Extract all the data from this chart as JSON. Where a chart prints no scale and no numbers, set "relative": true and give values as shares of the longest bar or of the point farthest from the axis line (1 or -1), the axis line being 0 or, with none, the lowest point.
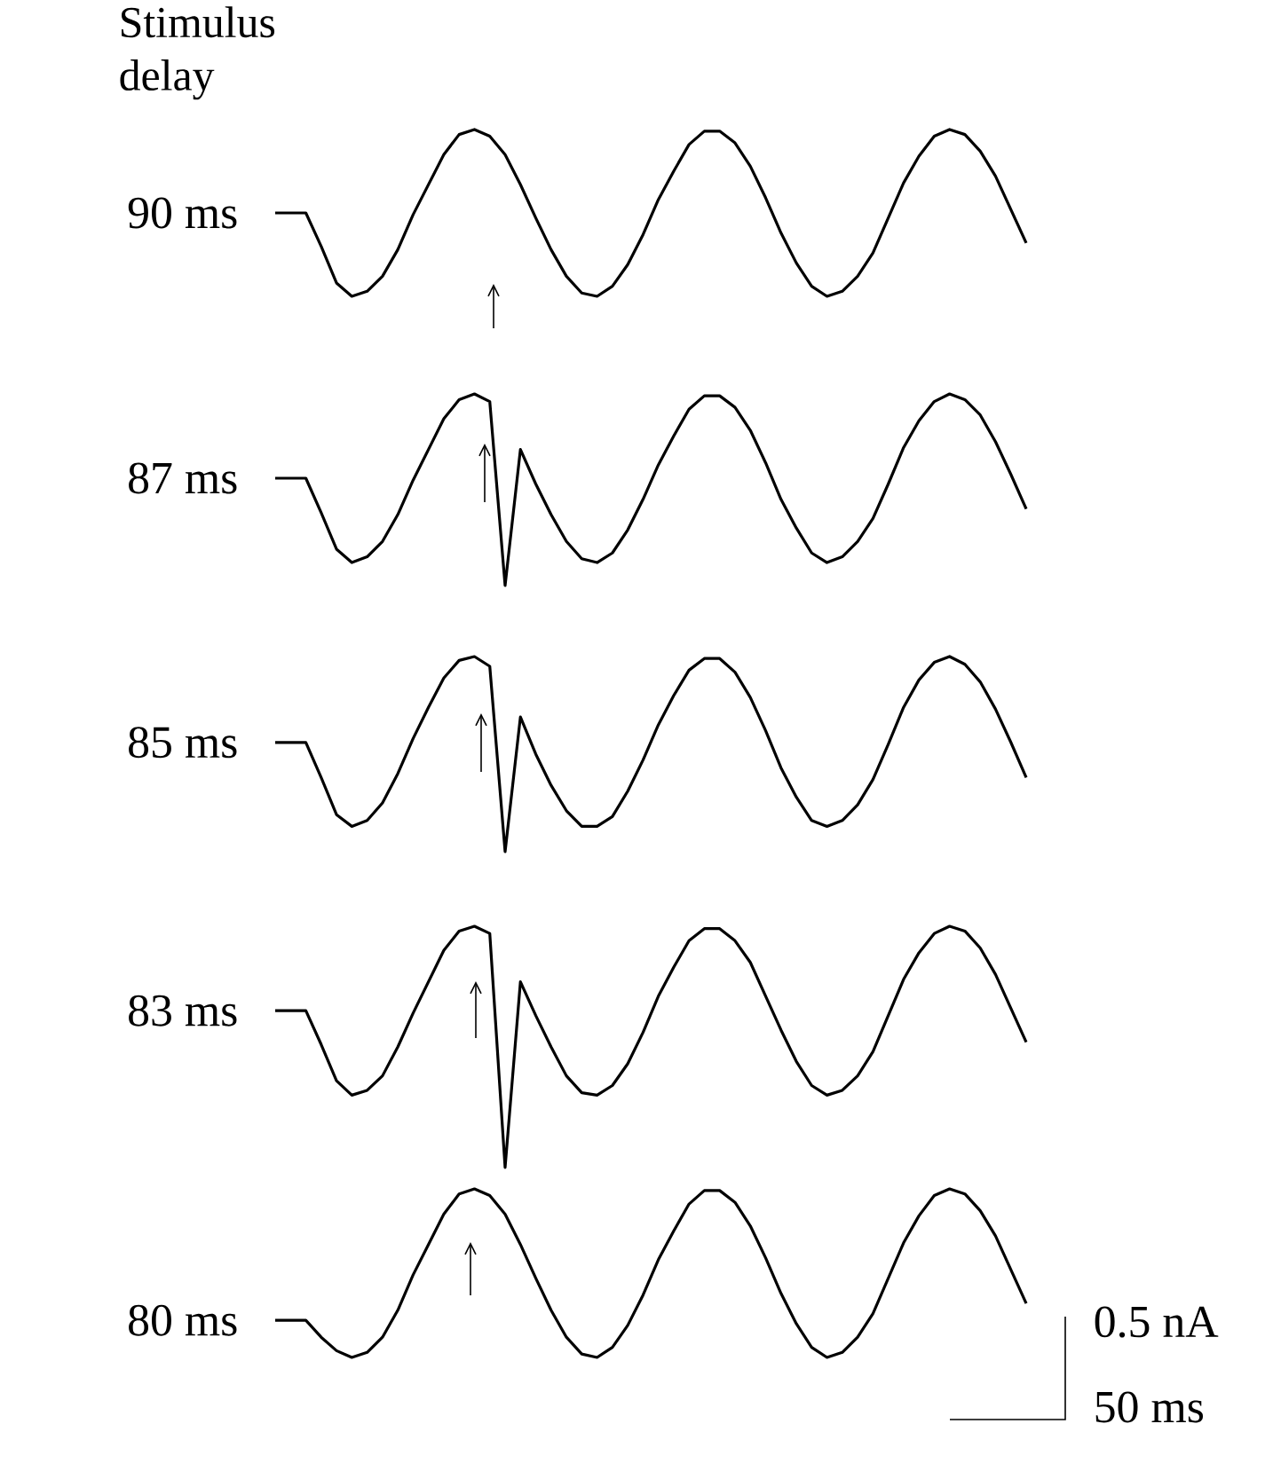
{
  "chart_data": [
    {
      "type": "line",
      "relative": true,
      "title": "Stimulus delay",
      "ylabel": "90 ms",
      "color": "#000000",
      "categories": [
        null,
        null,
        null,
        null,
        null,
        null,
        null,
        null,
        null,
        null,
        null,
        null,
        null,
        null,
        null,
        null,
        null,
        null,
        null,
        null,
        null,
        null,
        null,
        null,
        null,
        null,
        null,
        null,
        null,
        null,
        null,
        null,
        null,
        null,
        null,
        null,
        null,
        null,
        null,
        null,
        null,
        null,
        null,
        null,
        null,
        null,
        null,
        null,
        null,
        null
      ],
      "values": [
        0.5,
        0.5,
        0.5,
        0.3,
        0.08,
        0.0,
        0.03,
        0.12,
        0.28,
        0.49,
        0.67,
        0.85,
        0.97,
        1.0,
        0.96,
        0.85,
        0.67,
        0.47,
        0.28,
        0.12,
        0.02,
        0.0,
        0.06,
        0.19,
        0.37,
        0.58,
        0.75,
        0.91,
        0.99,
        0.99,
        0.92,
        0.78,
        0.59,
        0.38,
        0.2,
        0.06,
        0.0,
        0.03,
        0.12,
        0.26,
        0.47,
        0.68,
        0.84,
        0.96,
        1.0,
        0.97,
        0.87,
        0.72,
        0.52,
        0.32
      ]
    },
    {
      "type": "line",
      "relative": true,
      "ylabel": "87 ms",
      "color": "#000000",
      "categories": [
        null,
        null,
        null,
        null,
        null,
        null,
        null,
        null,
        null,
        null,
        null,
        null,
        null,
        null,
        null,
        null,
        null,
        null,
        null,
        null,
        null,
        null,
        null,
        null,
        null,
        null,
        null,
        null,
        null,
        null,
        null,
        null,
        null,
        null,
        null,
        null,
        null,
        null,
        null,
        null,
        null,
        null,
        null,
        null,
        null,
        null,
        null,
        null,
        null,
        null
      ],
      "values": [
        0.56,
        0.56,
        0.56,
        0.38,
        0.19,
        0.12,
        0.15,
        0.23,
        0.37,
        0.55,
        0.71,
        0.87,
        0.97,
        1.0,
        0.96,
        0.0,
        0.71,
        0.53,
        0.37,
        0.23,
        0.14,
        0.12,
        0.17,
        0.29,
        0.45,
        0.63,
        0.78,
        0.92,
        0.99,
        0.99,
        0.93,
        0.81,
        0.64,
        0.45,
        0.3,
        0.17,
        0.12,
        0.15,
        0.23,
        0.35,
        0.53,
        0.72,
        0.86,
        0.96,
        1.0,
        0.97,
        0.89,
        0.75,
        0.58,
        0.4
      ]
    },
    {
      "type": "line",
      "relative": true,
      "ylabel": "85 ms",
      "color": "#000000",
      "categories": [
        null,
        null,
        null,
        null,
        null,
        null,
        null,
        null,
        null,
        null,
        null,
        null,
        null,
        null,
        null,
        null,
        null,
        null,
        null,
        null,
        null,
        null,
        null,
        null,
        null,
        null,
        null,
        null,
        null,
        null,
        null,
        null,
        null,
        null,
        null,
        null,
        null,
        null,
        null,
        null,
        null,
        null,
        null,
        null,
        null,
        null,
        null,
        null,
        null,
        null
      ],
      "values": [
        0.56,
        0.56,
        0.56,
        0.38,
        0.19,
        0.13,
        0.16,
        0.25,
        0.4,
        0.58,
        0.74,
        0.89,
        0.98,
        1.0,
        0.95,
        0.0,
        0.69,
        0.5,
        0.34,
        0.21,
        0.13,
        0.13,
        0.18,
        0.31,
        0.47,
        0.65,
        0.8,
        0.93,
        0.99,
        0.99,
        0.92,
        0.79,
        0.62,
        0.43,
        0.28,
        0.16,
        0.13,
        0.16,
        0.24,
        0.37,
        0.55,
        0.74,
        0.88,
        0.97,
        1.0,
        0.96,
        0.87,
        0.73,
        0.56,
        0.38
      ]
    },
    {
      "type": "line",
      "relative": true,
      "ylabel": "83 ms",
      "color": "#000000",
      "categories": [
        null,
        null,
        null,
        null,
        null,
        null,
        null,
        null,
        null,
        null,
        null,
        null,
        null,
        null,
        null,
        null,
        null,
        null,
        null,
        null,
        null,
        null,
        null,
        null,
        null,
        null,
        null,
        null,
        null,
        null,
        null,
        null,
        null,
        null,
        null,
        null,
        null,
        null,
        null,
        null,
        null,
        null,
        null,
        null,
        null,
        null,
        null,
        null,
        null,
        null
      ],
      "values": [
        0.65,
        0.65,
        0.65,
        0.51,
        0.36,
        0.3,
        0.32,
        0.38,
        0.5,
        0.64,
        0.77,
        0.9,
        0.98,
        1.0,
        0.97,
        0.0,
        0.77,
        0.63,
        0.5,
        0.38,
        0.31,
        0.3,
        0.34,
        0.43,
        0.56,
        0.71,
        0.83,
        0.94,
        0.99,
        0.99,
        0.94,
        0.85,
        0.71,
        0.57,
        0.44,
        0.34,
        0.3,
        0.32,
        0.38,
        0.48,
        0.63,
        0.78,
        0.89,
        0.97,
        1.0,
        0.98,
        0.91,
        0.8,
        0.66,
        0.52
      ]
    },
    {
      "type": "line",
      "relative": true,
      "ylabel": "80 ms",
      "color": "#000000",
      "annotations": [
        "0.5 nA",
        "50 ms"
      ],
      "categories": [
        null,
        null,
        null,
        null,
        null,
        null,
        null,
        null,
        null,
        null,
        null,
        null,
        null,
        null,
        null,
        null,
        null,
        null,
        null,
        null,
        null,
        null,
        null,
        null,
        null,
        null,
        null,
        null,
        null,
        null,
        null,
        null,
        null,
        null,
        null,
        null,
        null,
        null,
        null,
        null,
        null,
        null,
        null,
        null,
        null,
        null,
        null,
        null,
        null,
        null
      ],
      "values": [
        0.22,
        0.22,
        0.22,
        0.12,
        0.04,
        0.0,
        0.03,
        0.12,
        0.28,
        0.49,
        0.67,
        0.85,
        0.97,
        1.0,
        0.96,
        0.85,
        0.67,
        0.47,
        0.28,
        0.12,
        0.02,
        0.0,
        0.06,
        0.19,
        0.37,
        0.58,
        0.75,
        0.91,
        0.99,
        0.99,
        0.92,
        0.78,
        0.59,
        0.38,
        0.2,
        0.06,
        0.0,
        0.03,
        0.12,
        0.26,
        0.47,
        0.68,
        0.84,
        0.96,
        1.0,
        0.97,
        0.87,
        0.72,
        0.52,
        0.32
      ]
    }
  ]
}
